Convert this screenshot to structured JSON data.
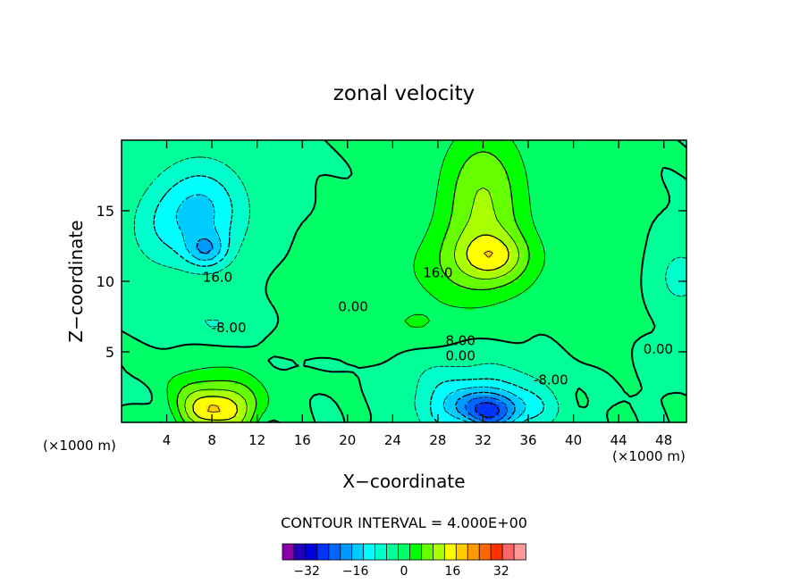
{
  "chart_data": {
    "type": "heatmap",
    "subtype": "filled-contour",
    "title": "zonal velocity",
    "xlabel": "X−coordinate",
    "ylabel": "Z−coordinate",
    "x_units_label": "(×1000 m)",
    "x_units_label_right": "(×1000 m)",
    "xlim": [
      0,
      50
    ],
    "ylim": [
      0,
      20
    ],
    "x_ticks": [
      4,
      8,
      12,
      16,
      20,
      24,
      28,
      32,
      36,
      40,
      44,
      48
    ],
    "x_tick_labels": [
      "4",
      "8",
      "12",
      "16",
      "20",
      "24",
      "28",
      "32",
      "36",
      "40",
      "44",
      "48"
    ],
    "y_ticks": [
      5,
      10,
      15
    ],
    "y_tick_labels": [
      "5",
      "10",
      "15"
    ],
    "contour_interval_text": "CONTOUR INTERVAL = 4.000E+00",
    "contour_interval": 4,
    "contour_labels": [
      {
        "text": "16.0",
        "x": 8.5,
        "z": 10.3
      },
      {
        "text": "-8.00",
        "x": 9.5,
        "z": 6.7
      },
      {
        "text": "0.00",
        "x": 20.5,
        "z": 8.2
      },
      {
        "text": "16.0",
        "x": 28.0,
        "z": 10.6
      },
      {
        "text": "8.00",
        "x": 30.0,
        "z": 5.8
      },
      {
        "text": "0.00",
        "x": 30.0,
        "z": 4.7
      },
      {
        "text": "-8.00",
        "x": 38.0,
        "z": 3.0
      },
      {
        "text": "0.00",
        "x": 47.5,
        "z": 5.2
      }
    ],
    "features": [
      {
        "sign": -1,
        "x": 7.0,
        "z": 15.0,
        "amp": 13.0,
        "sx": 4.0,
        "sz": 3.5
      },
      {
        "sign": -1,
        "x": 7.5,
        "z": 12.2,
        "amp": 10.0,
        "sx": 1.8,
        "sz": 1.2
      },
      {
        "sign": -1,
        "x": 3.0,
        "z": 13.5,
        "amp": 4.0,
        "sx": 3.0,
        "sz": 3.0
      },
      {
        "sign": -1,
        "x": 8.0,
        "z": 7.0,
        "amp": 4.0,
        "sx": 4.0,
        "sz": 1.2
      },
      {
        "sign": 1,
        "x": 32.0,
        "z": 16.0,
        "amp": 12.0,
        "sx": 3.8,
        "sz": 5.0
      },
      {
        "sign": 1,
        "x": 33.0,
        "z": 11.8,
        "amp": 8.5,
        "sx": 3.0,
        "sz": 1.6
      },
      {
        "sign": 1,
        "x": 31.0,
        "z": 11.0,
        "amp": 7.0,
        "sx": 6.0,
        "sz": 3.0
      },
      {
        "sign": 1,
        "x": 26.5,
        "z": 7.0,
        "amp": 3.0,
        "sx": 3.0,
        "sz": 1.3
      },
      {
        "sign": -1,
        "x": 32.5,
        "z": 0.8,
        "amp": 20.0,
        "sx": 4.0,
        "sz": 1.4
      },
      {
        "sign": -1,
        "x": 31.0,
        "z": 2.3,
        "amp": 8.0,
        "sx": 6.5,
        "sz": 2.2
      },
      {
        "sign": 1,
        "x": 8.5,
        "z": 0.8,
        "amp": 18.0,
        "sx": 3.3,
        "sz": 1.6
      },
      {
        "sign": 1,
        "x": 8.0,
        "z": 2.5,
        "amp": 6.0,
        "sx": 5.0,
        "sz": 2.0
      },
      {
        "sign": 1,
        "x": 20.0,
        "z": 7.0,
        "amp": 3.5,
        "sx": 4.5,
        "sz": 4.0
      },
      {
        "sign": 1,
        "x": 42.0,
        "z": 10.0,
        "amp": 3.0,
        "sx": 3.0,
        "sz": 5.0
      },
      {
        "sign": -1,
        "x": 49.5,
        "z": 10.3,
        "amp": 6.0,
        "sx": 2.2,
        "sz": 2.2
      },
      {
        "sign": -1,
        "x": 48.0,
        "z": 4.0,
        "amp": 3.0,
        "sx": 2.0,
        "sz": 1.5
      },
      {
        "sign": -1,
        "x": 1.0,
        "z": 2.0,
        "amp": 3.0,
        "sx": 2.0,
        "sz": 1.0
      },
      {
        "sign": -1,
        "x": 18.0,
        "z": 4.2,
        "amp": 2.0,
        "sx": 5.0,
        "sz": 1.0
      }
    ],
    "colorbar": {
      "levels": [
        -40,
        -36,
        -32,
        -28,
        -24,
        -20,
        -16,
        -12,
        -8,
        -4,
        0,
        4,
        8,
        12,
        16,
        20,
        24,
        28,
        32,
        36,
        40
      ],
      "colors": [
        "#8800aa",
        "#2200bb",
        "#0000dd",
        "#0033ff",
        "#0066ff",
        "#0099ff",
        "#00ccff",
        "#00ffff",
        "#00ffcc",
        "#00ff99",
        "#00ff66",
        "#00ff00",
        "#66ff00",
        "#aaff00",
        "#ffff00",
        "#ffcc00",
        "#ff9900",
        "#ff6600",
        "#ff3300",
        "#ff6666",
        "#ff9999"
      ],
      "tick_values": [
        -32,
        -16,
        0,
        16,
        32
      ],
      "tick_labels": [
        "−32",
        "−16",
        "0",
        "16",
        "32"
      ]
    }
  }
}
